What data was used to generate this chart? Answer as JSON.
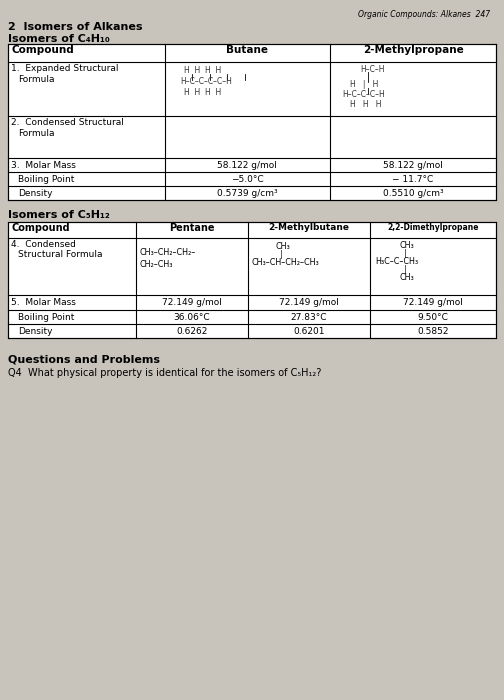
{
  "bg_color": "#c8c4bc",
  "page_header": "Organic Compounds: Alkanes  247",
  "section_title": "2  Isomers of Alkanes",
  "subtitle1": "Isomers of C₄H₁₀",
  "subtitle2": "Isomers of C₅H₁₂",
  "footer_title": "Questions and Problems",
  "footer_q": "Q4  What physical property is identical for the isomers of C₅H₁₂?"
}
